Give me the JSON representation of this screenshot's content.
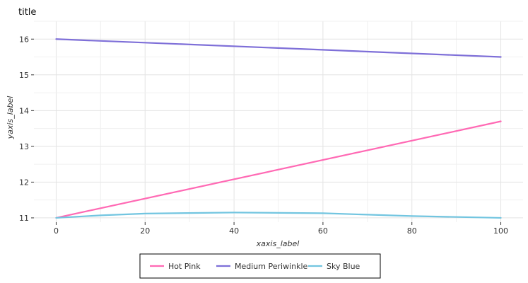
{
  "chart_data": {
    "type": "line",
    "title": "title",
    "xlabel": "xaxis_label",
    "ylabel": "yaxis_label",
    "xlim": [
      -5,
      105
    ],
    "ylim": [
      10.88,
      16.5
    ],
    "x_ticks": [
      0,
      20,
      40,
      60,
      80,
      100
    ],
    "y_ticks": [
      11,
      12,
      13,
      14,
      15,
      16
    ],
    "grid": true,
    "legend_position": "bottom",
    "series": [
      {
        "name": "Hot Pink",
        "color": "#ff69b4",
        "x": [
          0,
          100
        ],
        "y": [
          11.0,
          13.7
        ]
      },
      {
        "name": "Medium Periwinkle",
        "color": "#7e6fd8",
        "x": [
          0,
          100
        ],
        "y": [
          16.0,
          15.5
        ]
      },
      {
        "name": "Sky Blue",
        "color": "#72c5e0",
        "x": [
          0,
          10,
          20,
          40,
          60,
          80,
          100
        ],
        "y": [
          11.0,
          11.07,
          11.12,
          11.15,
          11.13,
          11.05,
          11.0
        ]
      }
    ]
  }
}
